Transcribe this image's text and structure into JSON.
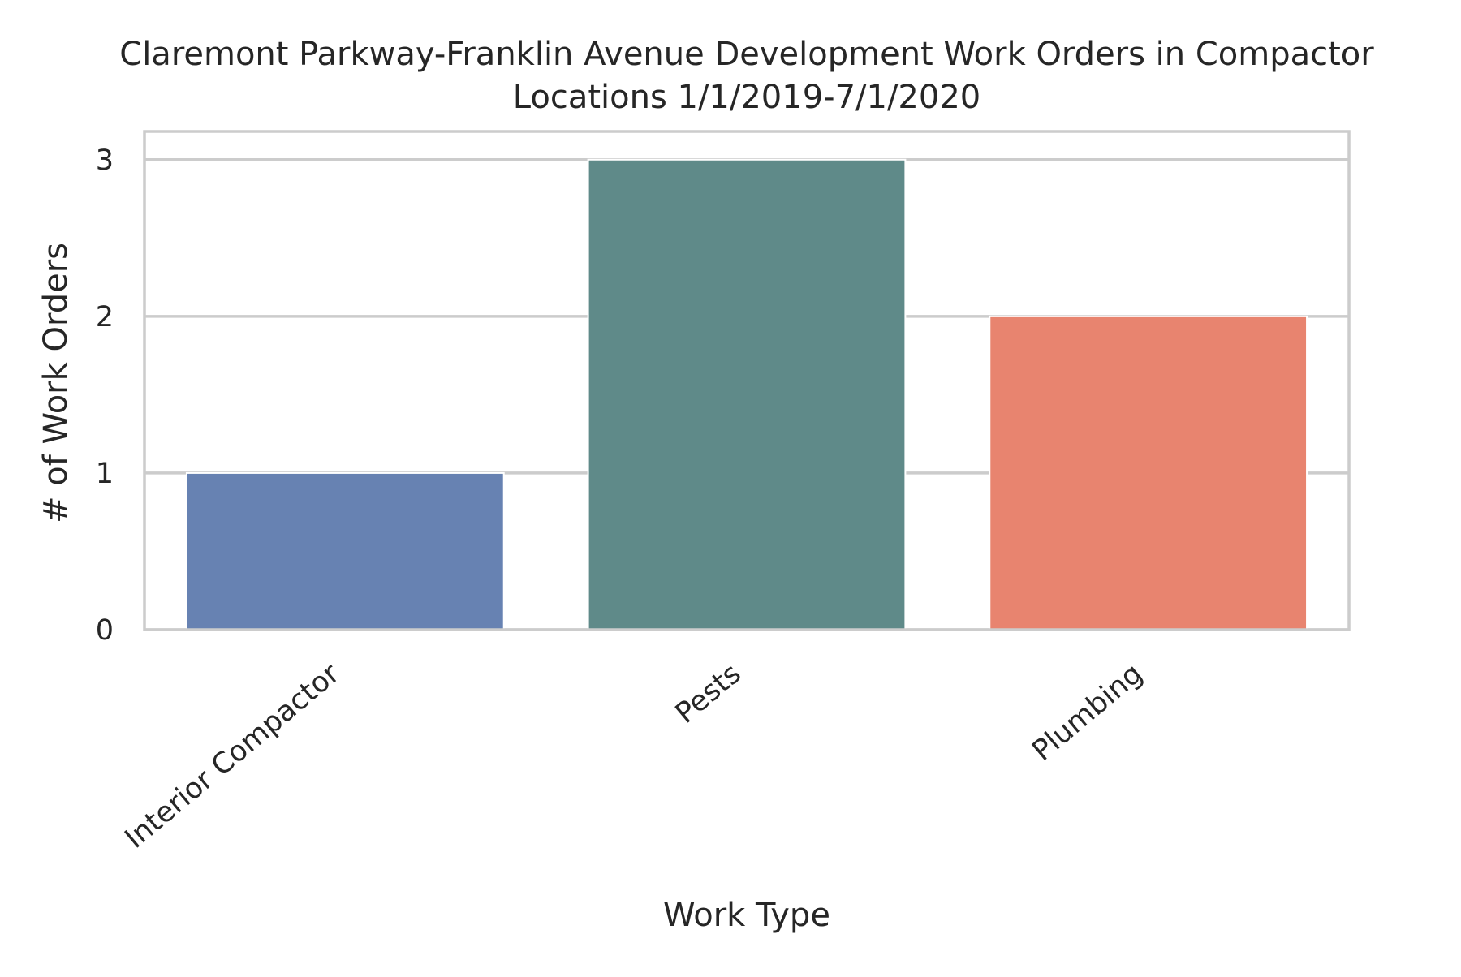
{
  "chart_data": {
    "type": "bar",
    "title_lines": [
      "Claremont Parkway-Franklin Avenue Development Work Orders in Compactor",
      "Locations 1/1/2019-7/1/2020"
    ],
    "categories": [
      "Interior Compactor",
      "Pests",
      "Plumbing"
    ],
    "values": [
      1,
      3,
      2
    ],
    "colors": [
      "#6782B2",
      "#5F8A89",
      "#E8846F"
    ],
    "xlabel": "Work Type",
    "ylabel": "# of Work Orders",
    "ylim": [
      0,
      3.18
    ],
    "yticks": [
      "0",
      "1",
      "2",
      "3"
    ],
    "grid": true,
    "legend": "none"
  }
}
